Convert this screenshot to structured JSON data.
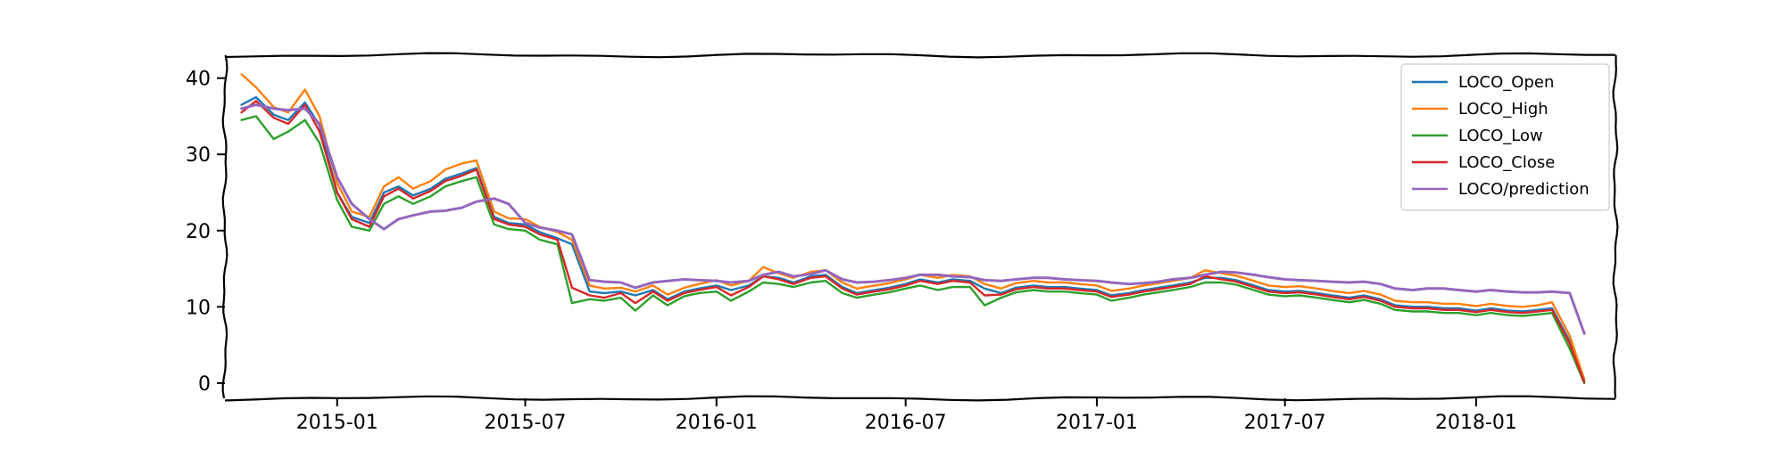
{
  "chart_data": {
    "type": "line",
    "title": "",
    "xlabel": "",
    "ylabel": "",
    "xlim": [
      "2014-09-15",
      "2018-05-15"
    ],
    "ylim": [
      -2,
      43
    ],
    "grid": false,
    "legend_position": "top-right",
    "x_ticks": [
      "2015-01",
      "2015-07",
      "2016-01",
      "2016-07",
      "2017-01",
      "2017-07",
      "2018-01"
    ],
    "y_ticks": [
      0,
      10,
      20,
      30,
      40
    ],
    "x": [
      "2014-10-01",
      "2014-10-15",
      "2014-11-01",
      "2014-11-15",
      "2014-12-01",
      "2014-12-15",
      "2015-01-01",
      "2015-01-15",
      "2015-02-01",
      "2015-02-15",
      "2015-03-01",
      "2015-03-15",
      "2015-04-01",
      "2015-04-15",
      "2015-05-01",
      "2015-05-15",
      "2015-06-01",
      "2015-06-15",
      "2015-07-01",
      "2015-07-15",
      "2015-08-01",
      "2015-08-15",
      "2015-09-01",
      "2015-09-15",
      "2015-10-01",
      "2015-10-15",
      "2015-11-01",
      "2015-11-15",
      "2015-12-01",
      "2015-12-15",
      "2016-01-01",
      "2016-01-15",
      "2016-02-01",
      "2016-02-15",
      "2016-03-01",
      "2016-03-15",
      "2016-04-01",
      "2016-04-15",
      "2016-05-01",
      "2016-05-15",
      "2016-06-01",
      "2016-06-15",
      "2016-07-01",
      "2016-07-15",
      "2016-08-01",
      "2016-08-15",
      "2016-09-01",
      "2016-09-15",
      "2016-10-01",
      "2016-10-15",
      "2016-11-01",
      "2016-11-15",
      "2016-12-01",
      "2016-12-15",
      "2017-01-01",
      "2017-01-15",
      "2017-02-01",
      "2017-02-15",
      "2017-03-01",
      "2017-03-15",
      "2017-04-01",
      "2017-04-15",
      "2017-05-01",
      "2017-05-15",
      "2017-06-01",
      "2017-06-15",
      "2017-07-01",
      "2017-07-15",
      "2017-08-01",
      "2017-08-15",
      "2017-09-01",
      "2017-09-15",
      "2017-10-01",
      "2017-10-15",
      "2017-11-01",
      "2017-11-15",
      "2017-12-01",
      "2017-12-15",
      "2018-01-01",
      "2018-01-15",
      "2018-02-01",
      "2018-02-15",
      "2018-03-01",
      "2018-03-15",
      "2018-04-01",
      "2018-04-15"
    ],
    "series": [
      {
        "name": "LOCO_Open",
        "color": "#1f77b4",
        "values": [
          36.5,
          37.5,
          35.2,
          34.5,
          36.8,
          33.8,
          25.0,
          21.8,
          21.0,
          25.0,
          25.8,
          24.6,
          25.5,
          26.8,
          27.5,
          28.2,
          21.8,
          21.0,
          20.8,
          19.8,
          19.0,
          18.2,
          12.0,
          11.8,
          12.0,
          11.5,
          12.2,
          11.0,
          12.0,
          12.4,
          12.8,
          12.2,
          12.8,
          14.0,
          13.8,
          13.2,
          14.0,
          14.2,
          12.6,
          11.8,
          12.2,
          12.5,
          13.0,
          13.6,
          13.2,
          13.6,
          13.4,
          12.4,
          11.8,
          12.5,
          12.8,
          12.6,
          12.6,
          12.4,
          12.2,
          11.5,
          11.8,
          12.2,
          12.5,
          12.8,
          13.2,
          13.8,
          13.8,
          13.5,
          12.8,
          12.2,
          12.0,
          12.1,
          11.8,
          11.5,
          11.2,
          11.5,
          11.0,
          10.2,
          10.0,
          10.0,
          9.8,
          9.8,
          9.5,
          9.8,
          9.5,
          9.4,
          9.6,
          9.8,
          5.5,
          0.2
        ]
      },
      {
        "name": "LOCO_High",
        "color": "#ff7f0e",
        "values": [
          40.5,
          38.8,
          36.2,
          35.5,
          38.5,
          35.0,
          26.2,
          22.5,
          21.8,
          25.8,
          27.0,
          25.5,
          26.5,
          28.0,
          28.8,
          29.2,
          22.5,
          21.6,
          21.5,
          20.5,
          19.8,
          18.8,
          12.8,
          12.4,
          12.5,
          12.0,
          12.8,
          11.6,
          12.5,
          13.0,
          13.5,
          12.8,
          13.4,
          15.2,
          14.4,
          13.8,
          14.6,
          14.8,
          13.2,
          12.4,
          12.8,
          13.1,
          13.6,
          14.2,
          13.8,
          14.2,
          14.0,
          13.0,
          12.4,
          13.1,
          13.4,
          13.2,
          13.2,
          13.0,
          12.8,
          12.1,
          12.4,
          12.8,
          13.1,
          13.4,
          13.8,
          14.8,
          14.4,
          14.1,
          13.4,
          12.8,
          12.6,
          12.7,
          12.4,
          12.1,
          11.8,
          12.1,
          11.6,
          10.8,
          10.6,
          10.6,
          10.4,
          10.4,
          10.1,
          10.4,
          10.1,
          10.0,
          10.2,
          10.6,
          6.2,
          0.5
        ]
      },
      {
        "name": "LOCO_Low",
        "color": "#2ca02c",
        "values": [
          34.5,
          35.0,
          32.0,
          33.0,
          34.5,
          31.5,
          24.0,
          20.5,
          20.0,
          23.5,
          24.5,
          23.5,
          24.5,
          25.8,
          26.5,
          27.0,
          20.8,
          20.2,
          20.0,
          18.8,
          18.2,
          10.5,
          11.0,
          10.8,
          11.2,
          9.5,
          11.5,
          10.2,
          11.4,
          11.8,
          12.0,
          10.8,
          12.0,
          13.2,
          13.0,
          12.6,
          13.2,
          13.4,
          11.8,
          11.2,
          11.6,
          11.9,
          12.4,
          12.8,
          12.2,
          12.6,
          12.6,
          10.2,
          11.2,
          11.9,
          12.2,
          12.0,
          12.0,
          11.8,
          11.6,
          10.8,
          11.2,
          11.6,
          11.9,
          12.2,
          12.6,
          13.2,
          13.2,
          12.9,
          12.2,
          11.6,
          11.4,
          11.5,
          11.2,
          10.9,
          10.6,
          10.9,
          10.4,
          9.6,
          9.4,
          9.4,
          9.2,
          9.2,
          8.9,
          9.2,
          8.9,
          8.8,
          9.0,
          9.2,
          4.5,
          0.0
        ]
      },
      {
        "name": "LOCO_Close",
        "color": "#d62728",
        "values": [
          35.5,
          37.0,
          34.8,
          34.0,
          36.5,
          33.0,
          25.0,
          21.5,
          20.5,
          24.5,
          25.5,
          24.2,
          25.2,
          26.5,
          27.2,
          28.0,
          21.5,
          20.8,
          20.5,
          19.5,
          18.8,
          12.5,
          11.5,
          11.2,
          11.8,
          10.5,
          12.0,
          10.8,
          11.8,
          12.2,
          12.6,
          11.5,
          12.6,
          14.0,
          13.6,
          13.0,
          13.8,
          14.0,
          12.4,
          11.6,
          12.0,
          12.3,
          12.8,
          13.4,
          13.0,
          13.4,
          13.2,
          11.5,
          11.6,
          12.3,
          12.6,
          12.4,
          12.4,
          12.2,
          12.0,
          11.3,
          11.6,
          12.0,
          12.3,
          12.6,
          13.0,
          14.0,
          13.6,
          13.3,
          12.6,
          12.0,
          11.8,
          11.9,
          11.6,
          11.3,
          11.0,
          11.3,
          10.8,
          10.0,
          9.8,
          9.8,
          9.6,
          9.6,
          9.3,
          9.6,
          9.3,
          9.2,
          9.4,
          9.6,
          5.2,
          0.1
        ]
      },
      {
        "name": "LOCO/prediction",
        "color": "#9467bd",
        "values": [
          36.0,
          36.5,
          36.0,
          35.8,
          36.0,
          34.0,
          27.0,
          23.5,
          21.5,
          20.2,
          21.5,
          22.0,
          22.5,
          22.6,
          23.0,
          23.8,
          24.2,
          23.5,
          21.0,
          20.4,
          20.0,
          19.5,
          13.5,
          13.3,
          13.2,
          12.5,
          13.2,
          13.4,
          13.6,
          13.5,
          13.4,
          13.2,
          13.4,
          14.2,
          14.6,
          14.0,
          14.3,
          14.8,
          13.6,
          13.2,
          13.3,
          13.5,
          13.8,
          14.2,
          14.2,
          14.0,
          13.9,
          13.5,
          13.4,
          13.6,
          13.8,
          13.8,
          13.6,
          13.5,
          13.4,
          13.2,
          13.0,
          13.1,
          13.3,
          13.6,
          13.8,
          14.2,
          14.6,
          14.5,
          14.2,
          13.9,
          13.6,
          13.5,
          13.4,
          13.3,
          13.2,
          13.3,
          13.0,
          12.4,
          12.2,
          12.4,
          12.4,
          12.2,
          12.0,
          12.2,
          12.0,
          11.9,
          11.9,
          12.0,
          11.8,
          6.5
        ]
      }
    ]
  }
}
